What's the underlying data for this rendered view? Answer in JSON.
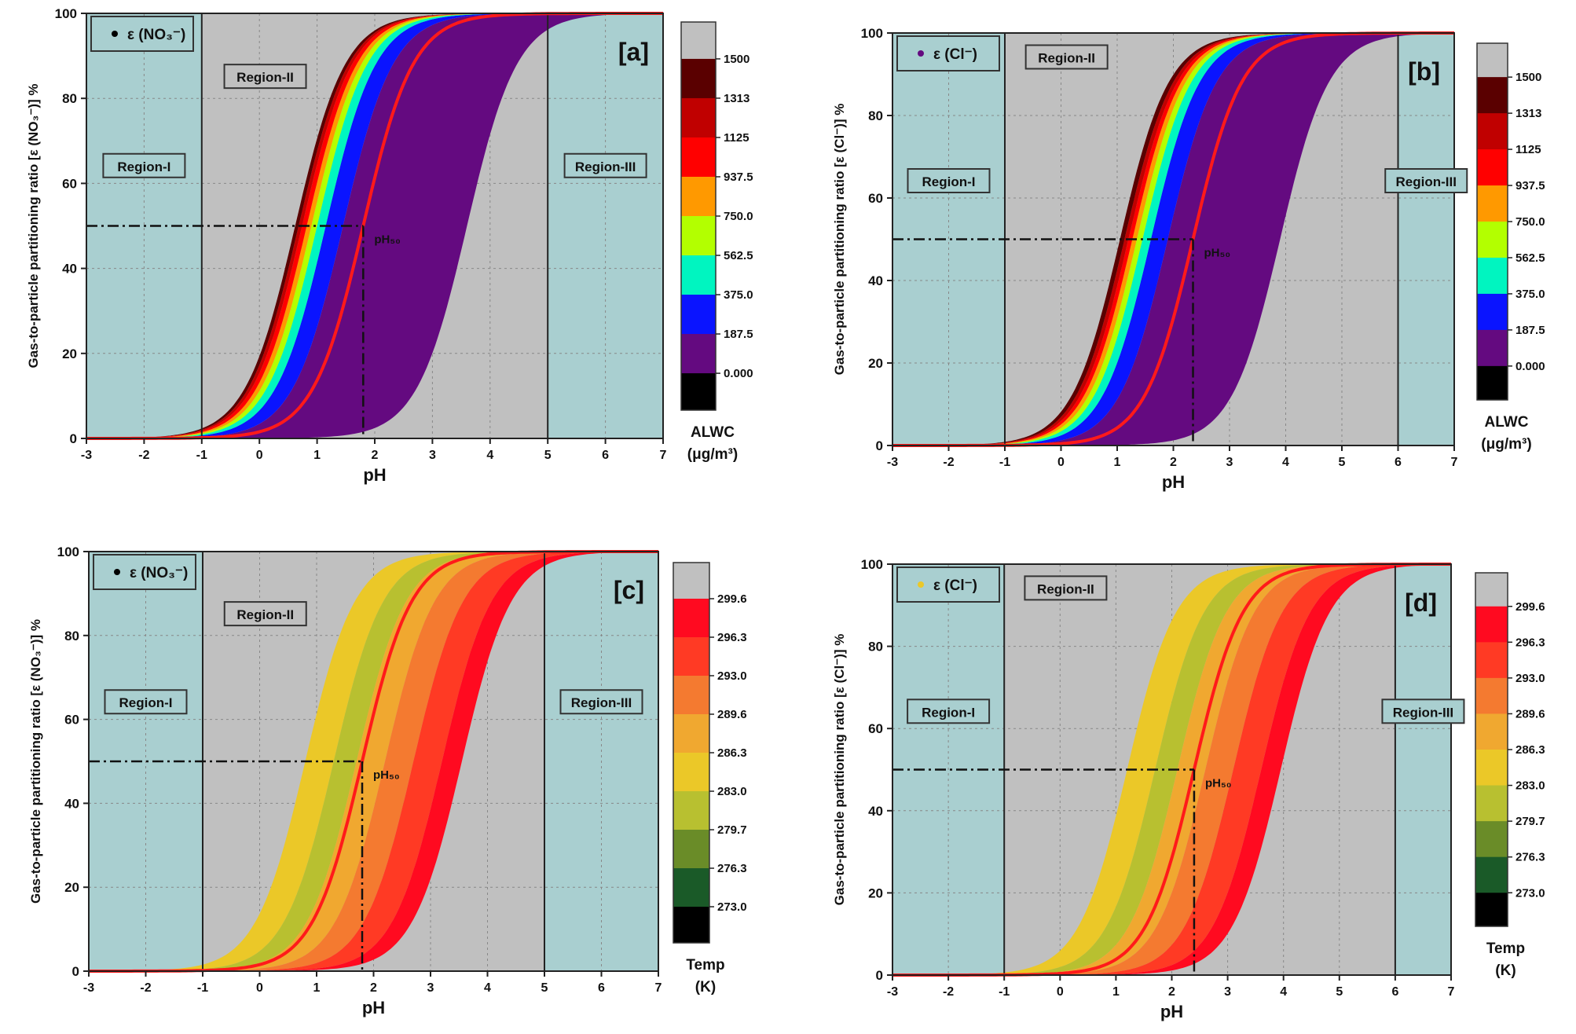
{
  "chart_data": [
    {
      "type": "scatter",
      "panel_label": "[a]",
      "xlabel": "pH",
      "ylabel": "Gas-to-particle partitioning ratio [ε (NO₃⁻)] %",
      "xlim": [
        -3,
        7
      ],
      "ylim": [
        0,
        100
      ],
      "xticks": [
        "-3",
        "-2",
        "-1",
        "0",
        "1",
        "2",
        "3",
        "4",
        "5",
        "6",
        "7"
      ],
      "yticks": [
        "0",
        "20",
        "40",
        "60",
        "80",
        "100"
      ],
      "grid": true,
      "legend": {
        "label": "ε (NO₃⁻)",
        "marker_color": "#000000",
        "placement": "top-left"
      },
      "regions": [
        {
          "label": "Region-I",
          "from": -3,
          "to": -1
        },
        {
          "label": "Region-II",
          "from": -1,
          "to": 5
        },
        {
          "label": "Region-III",
          "from": 5,
          "to": 7
        }
      ],
      "pH50": 1.8,
      "pH50_label": "pH₅₀",
      "fit_curve_color": "#ff1a1a",
      "colorbar": {
        "title": "ALWC",
        "unit": "(μg/m³)",
        "labels": [
          "1500",
          "1313",
          "1125",
          "937.5",
          "750.0",
          "562.5",
          "375.0",
          "187.5",
          "0.000"
        ],
        "colors": [
          "#c0c0c0",
          "#5a0000",
          "#c00000",
          "#ff0000",
          "#ff9900",
          "#b3ff00",
          "#00f5c0",
          "#0a14ff",
          "#640a80",
          "#000000"
        ]
      },
      "bands": [
        {
          "class": "0.000-187.5",
          "color": "#640a80",
          "pH50_range": [
            1.45,
            3.6
          ]
        },
        {
          "class": "187.5-375.0",
          "color": "#0a14ff",
          "pH50_range": [
            1.15,
            1.45
          ]
        },
        {
          "class": "375.0-562.5",
          "color": "#00f5c0",
          "pH50_range": [
            1.0,
            1.15
          ]
        },
        {
          "class": "562.5-750.0",
          "color": "#b3ff00",
          "pH50_range": [
            0.9,
            1.0
          ]
        },
        {
          "class": "750.0-937.5",
          "color": "#ff9900",
          "pH50_range": [
            0.82,
            0.9
          ]
        },
        {
          "class": "937.5-1125",
          "color": "#ff0000",
          "pH50_range": [
            0.74,
            0.82
          ]
        },
        {
          "class": "1125-1313",
          "color": "#c00000",
          "pH50_range": [
            0.68,
            0.74
          ]
        },
        {
          "class": "1313-1500",
          "color": "#5a0000",
          "pH50_range": [
            0.62,
            0.68
          ]
        }
      ]
    },
    {
      "type": "scatter",
      "panel_label": "[b]",
      "xlabel": "pH",
      "ylabel": "Gas-to-particle partitioning ratio [ε (Cl⁻)] %",
      "xlim": [
        -3,
        7
      ],
      "ylim": [
        0,
        100
      ],
      "xticks": [
        "-3",
        "-2",
        "-1",
        "0",
        "1",
        "2",
        "3",
        "4",
        "5",
        "6",
        "7"
      ],
      "yticks": [
        "0",
        "20",
        "40",
        "60",
        "80",
        "100"
      ],
      "grid": true,
      "legend": {
        "label": "ε (Cl⁻)",
        "marker_color": "#640a80",
        "placement": "top-left"
      },
      "regions": [
        {
          "label": "Region-I",
          "from": -3,
          "to": -1
        },
        {
          "label": "Region-II",
          "from": -1,
          "to": 6
        },
        {
          "label": "Region-III",
          "from": 6,
          "to": 7
        }
      ],
      "pH50": 2.35,
      "pH50_label": "pH₅₀",
      "fit_curve_color": "#ff1a1a",
      "colorbar": {
        "title": "ALWC",
        "unit": "(μg/m³)",
        "labels": [
          "1500",
          "1313",
          "1125",
          "937.5",
          "750.0",
          "562.5",
          "375.0",
          "187.5",
          "0.000"
        ],
        "colors": [
          "#c0c0c0",
          "#5a0000",
          "#c00000",
          "#ff0000",
          "#ff9900",
          "#b3ff00",
          "#00f5c0",
          "#0a14ff",
          "#640a80",
          "#000000"
        ]
      },
      "bands": [
        {
          "class": "0.000-187.5",
          "color": "#640a80",
          "pH50_range": [
            1.9,
            3.9
          ]
        },
        {
          "class": "187.5-375.0",
          "color": "#0a14ff",
          "pH50_range": [
            1.6,
            1.9
          ]
        },
        {
          "class": "375.0-562.5",
          "color": "#00f5c0",
          "pH50_range": [
            1.45,
            1.6
          ]
        },
        {
          "class": "562.5-750.0",
          "color": "#b3ff00",
          "pH50_range": [
            1.35,
            1.45
          ]
        },
        {
          "class": "750.0-937.5",
          "color": "#ff9900",
          "pH50_range": [
            1.27,
            1.35
          ]
        },
        {
          "class": "937.5-1125",
          "color": "#ff0000",
          "pH50_range": [
            1.2,
            1.27
          ]
        },
        {
          "class": "1125-1313",
          "color": "#c00000",
          "pH50_range": [
            1.13,
            1.2
          ]
        },
        {
          "class": "1313-1500",
          "color": "#5a0000",
          "pH50_range": [
            1.05,
            1.13
          ]
        }
      ]
    },
    {
      "type": "scatter",
      "panel_label": "[c]",
      "xlabel": "pH",
      "ylabel": "Gas-to-particle partitioning ratio [ε (NO₃⁻)] %",
      "xlim": [
        -3,
        7
      ],
      "ylim": [
        0,
        100
      ],
      "xticks": [
        "-3",
        "-2",
        "-1",
        "0",
        "1",
        "2",
        "3",
        "4",
        "5",
        "6",
        "7"
      ],
      "yticks": [
        "0",
        "20",
        "40",
        "60",
        "80",
        "100"
      ],
      "grid": true,
      "legend": {
        "label": "ε (NO₃⁻)",
        "marker_color": "#000000",
        "placement": "top-left"
      },
      "regions": [
        {
          "label": "Region-I",
          "from": -3,
          "to": -1
        },
        {
          "label": "Region-II",
          "from": -1,
          "to": 5
        },
        {
          "label": "Region-III",
          "from": 5,
          "to": 7
        }
      ],
      "pH50": 1.8,
      "pH50_label": "pH₅₀",
      "fit_curve_color": "#ff1a1a",
      "colorbar": {
        "title": "Temp",
        "unit": "(K)",
        "labels": [
          "299.6",
          "296.3",
          "293.0",
          "289.6",
          "286.3",
          "283.0",
          "279.7",
          "276.3",
          "273.0"
        ],
        "colors": [
          "#c0c0c0",
          "#ff0a20",
          "#ff3a24",
          "#f47a30",
          "#f0a830",
          "#ebc828",
          "#b8c030",
          "#6a8c28",
          "#1a5a28",
          "#000000"
        ]
      },
      "bands": [
        {
          "class": "283.0-286.3",
          "color": "#ebc828",
          "pH50_range": [
            0.8,
            1.3
          ]
        },
        {
          "class": "279.7-283.0",
          "color": "#b8c030",
          "pH50_range": [
            1.3,
            1.7
          ]
        },
        {
          "class": "286.3-289.6",
          "color": "#f0a830",
          "pH50_range": [
            1.7,
            2.2
          ]
        },
        {
          "class": "289.6-293.0",
          "color": "#f47a30",
          "pH50_range": [
            2.2,
            2.7
          ]
        },
        {
          "class": "293.0-296.3",
          "color": "#ff3a24",
          "pH50_range": [
            2.7,
            3.2
          ]
        },
        {
          "class": "296.3-299.6",
          "color": "#ff0a20",
          "pH50_range": [
            3.2,
            3.55
          ]
        }
      ]
    },
    {
      "type": "scatter",
      "panel_label": "[d]",
      "xlabel": "pH",
      "ylabel": "Gas-to-particle partitioning ratio [ε (Cl⁻)] %",
      "xlim": [
        -3,
        7
      ],
      "ylim": [
        0,
        100
      ],
      "xticks": [
        "-3",
        "-2",
        "-1",
        "0",
        "1",
        "2",
        "3",
        "4",
        "5",
        "6",
        "7"
      ],
      "yticks": [
        "0",
        "20",
        "40",
        "60",
        "80",
        "100"
      ],
      "grid": true,
      "legend": {
        "label": "ε (Cl⁻)",
        "marker_color": "#ebc828",
        "placement": "top-left"
      },
      "regions": [
        {
          "label": "Region-I",
          "from": -3,
          "to": -1
        },
        {
          "label": "Region-II",
          "from": -1,
          "to": 6
        },
        {
          "label": "Region-III",
          "from": 6,
          "to": 7
        }
      ],
      "pH50": 2.4,
      "pH50_label": "pH₅₀",
      "fit_curve_color": "#ff1a1a",
      "colorbar": {
        "title": "Temp",
        "unit": "(K)",
        "labels": [
          "299.6",
          "296.3",
          "293.0",
          "289.6",
          "286.3",
          "283.0",
          "279.7",
          "276.3",
          "273.0"
        ],
        "colors": [
          "#c0c0c0",
          "#ff0a20",
          "#ff3a24",
          "#f47a30",
          "#f0a830",
          "#ebc828",
          "#b8c030",
          "#6a8c28",
          "#1a5a28",
          "#000000"
        ]
      },
      "bands": [
        {
          "class": "283.0-286.3",
          "color": "#ebc828",
          "pH50_range": [
            1.2,
            1.7
          ]
        },
        {
          "class": "279.7-283.0",
          "color": "#b8c030",
          "pH50_range": [
            1.7,
            2.1
          ]
        },
        {
          "class": "286.3-289.6",
          "color": "#f0a830",
          "pH50_range": [
            2.1,
            2.6
          ]
        },
        {
          "class": "289.6-293.0",
          "color": "#f47a30",
          "pH50_range": [
            2.6,
            3.1
          ]
        },
        {
          "class": "293.0-296.3",
          "color": "#ff3a24",
          "pH50_range": [
            3.1,
            3.6
          ]
        },
        {
          "class": "296.3-299.6",
          "color": "#ff0a20",
          "pH50_range": [
            3.6,
            3.95
          ]
        }
      ]
    }
  ]
}
